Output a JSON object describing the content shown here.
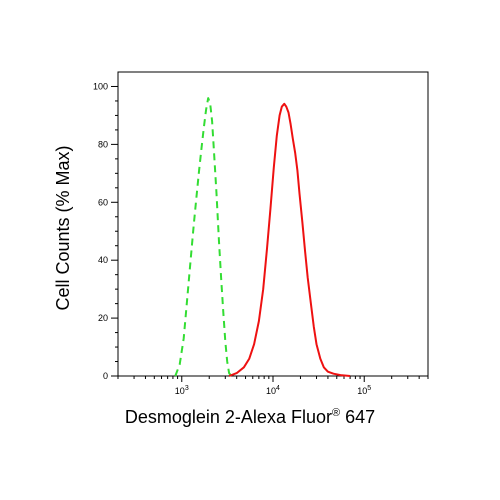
{
  "chart_data": {
    "type": "line",
    "title": "",
    "xlabel": "Desmoglein 2-Alexa Fluor",
    "xlabel_sup": "®",
    "xlabel_suffix": " 647",
    "ylabel": "Cell Counts (% Max)",
    "xscale": "log",
    "xlim": [
      200,
      500000
    ],
    "ylim": [
      0,
      105
    ],
    "yticks": [
      0,
      20,
      40,
      60,
      80,
      100
    ],
    "xticks": [
      {
        "value": 1000,
        "base": "10",
        "exp": "3"
      },
      {
        "value": 10000,
        "base": "10",
        "exp": "4"
      },
      {
        "value": 100000,
        "base": "10",
        "exp": "5"
      }
    ],
    "grid": false,
    "series": [
      {
        "style": "dashed",
        "color": "#33dd33",
        "x": [
          850,
          950,
          1050,
          1150,
          1250,
          1350,
          1450,
          1550,
          1650,
          1750,
          1850,
          1950,
          2050,
          2150,
          2250,
          2400,
          2550,
          2700,
          2850,
          3000,
          3150,
          3300,
          3500
        ],
        "y": [
          0,
          4,
          13,
          27,
          40,
          52,
          62,
          71,
          79,
          86,
          92,
          96,
          94,
          88,
          78,
          63,
          47,
          34,
          22,
          12,
          5,
          1,
          0
        ]
      },
      {
        "style": "solid",
        "color": "#ee1111",
        "x": [
          3300,
          4000,
          4800,
          5500,
          6200,
          7000,
          7800,
          8600,
          9400,
          10200,
          11000,
          11800,
          12500,
          13300,
          14000,
          14800,
          15600,
          16500,
          17500,
          18500,
          19500,
          21000,
          22500,
          24000,
          26000,
          28000,
          30000,
          33000,
          36000,
          40000,
          46000,
          55000,
          70000
        ],
        "y": [
          0,
          1,
          3,
          6,
          11,
          19,
          30,
          44,
          58,
          72,
          83,
          90,
          93,
          94,
          93,
          91,
          87,
          82,
          77,
          71,
          63,
          53,
          43,
          34,
          25,
          17,
          11,
          6,
          3,
          1.5,
          0.8,
          0.3,
          0
        ]
      }
    ]
  }
}
